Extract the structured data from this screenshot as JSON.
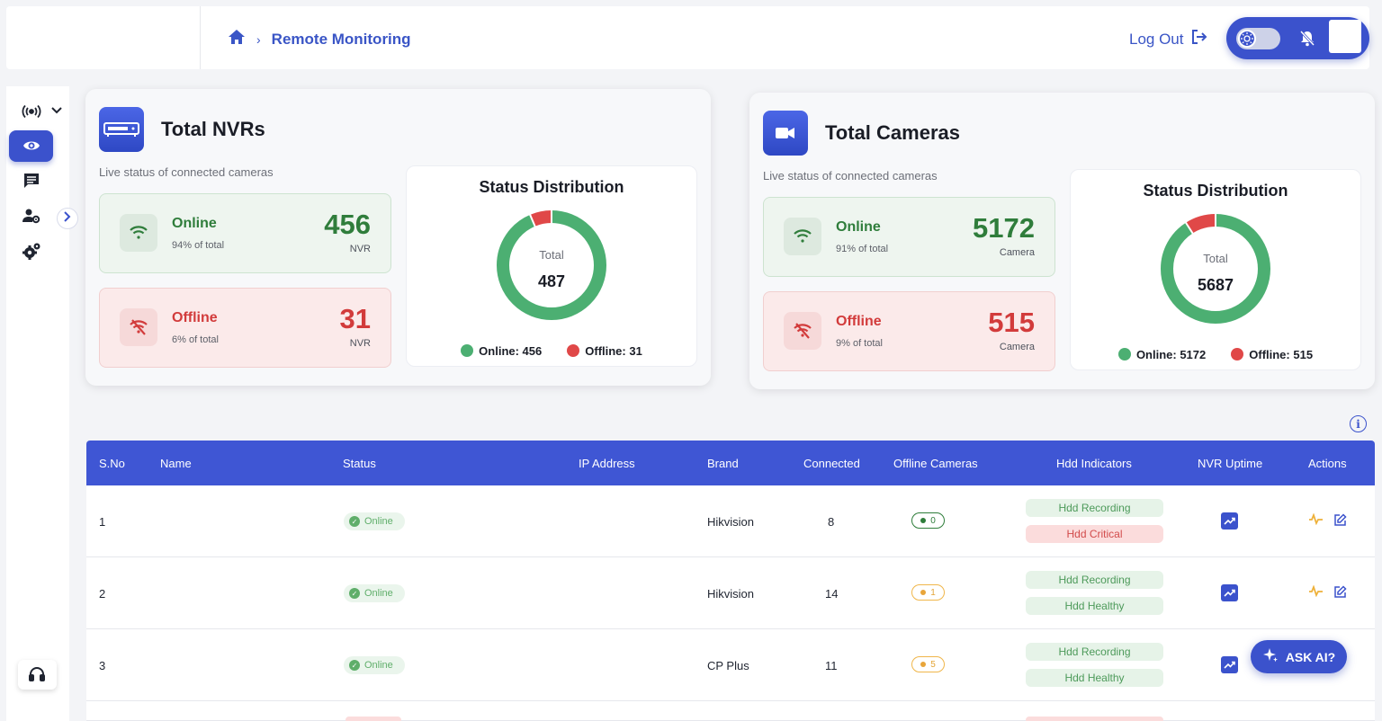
{
  "breadcrumb": {
    "page": "Remote Monitoring"
  },
  "header": {
    "logout": "Log Out"
  },
  "nvr_card": {
    "title": "Total NVRs",
    "subtitle": "Live status of connected cameras",
    "online": {
      "label": "Online",
      "pct": "94% of total",
      "value": "456",
      "unit": "NVR"
    },
    "offline": {
      "label": "Offline",
      "pct": "6% of total",
      "value": "31",
      "unit": "NVR"
    },
    "dist": {
      "title": "Status Distribution",
      "total_label": "Total",
      "total": "487",
      "legend_online": "Online: 456",
      "legend_offline": "Offline: 31",
      "online_frac": 0.936
    }
  },
  "camera_card": {
    "title": "Total Cameras",
    "subtitle": "Live status of connected cameras",
    "online": {
      "label": "Online",
      "pct": "91% of total",
      "value": "5172",
      "unit": "Camera"
    },
    "offline": {
      "label": "Offline",
      "pct": "9% of total",
      "value": "515",
      "unit": "Camera"
    },
    "dist": {
      "title": "Status Distribution",
      "total_label": "Total",
      "total": "5687",
      "legend_online": "Online: 5172",
      "legend_offline": "Offline: 515",
      "online_frac": 0.909
    }
  },
  "colors": {
    "online": "#4caf72",
    "offline": "#e04848",
    "accent": "#3f56d4"
  },
  "table": {
    "headers": {
      "sno": "S.No",
      "name": "Name",
      "status": "Status",
      "ip": "IP Address",
      "brand": "Brand",
      "connected": "Connected",
      "offline": "Offline Cameras",
      "hdd": "Hdd Indicators",
      "uptime": "NVR Uptime",
      "actions": "Actions"
    },
    "rows": [
      {
        "sno": "1",
        "status": "Online",
        "brand": "Hikvision",
        "connected": "8",
        "offline": "0",
        "hdd1": "Hdd Recording",
        "hdd2": "Hdd Critical"
      },
      {
        "sno": "2",
        "status": "Online",
        "brand": "Hikvision",
        "connected": "14",
        "offline": "1",
        "hdd1": "Hdd Recording",
        "hdd2": "Hdd Healthy"
      },
      {
        "sno": "3",
        "status": "Online",
        "brand": "CP Plus",
        "connected": "11",
        "offline": "5",
        "hdd1": "Hdd Recording",
        "hdd2": "Hdd Healthy"
      }
    ]
  },
  "ask_ai": "ASK AI?"
}
